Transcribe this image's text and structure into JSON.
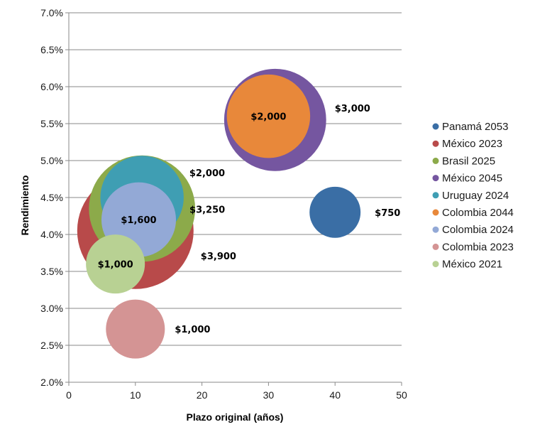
{
  "chart_data": {
    "type": "bubble",
    "xlabel": "Plazo original (años)",
    "ylabel": "Rendimiento",
    "xlim": [
      0,
      50
    ],
    "ylim": [
      2.0,
      7.0
    ],
    "x_ticks": [
      "0",
      "10",
      "20",
      "30",
      "40",
      "50"
    ],
    "y_ticks": [
      "2.0%",
      "2.5%",
      "3.0%",
      "3.5%",
      "4.0%",
      "4.5%",
      "5.0%",
      "5.5%",
      "6.0%",
      "6.5%",
      "7.0%"
    ],
    "grid": true,
    "legend_position": "right",
    "series": [
      {
        "name": "Panamá 2053",
        "x": 40,
        "y": 4.3,
        "size": 750,
        "label": "$750",
        "color": "#3a6ea5"
      },
      {
        "name": "México 2023",
        "x": 10,
        "y": 4.05,
        "size": 3900,
        "label": "$3,900",
        "color": "#b84a4a"
      },
      {
        "name": "Brasil 2025",
        "x": 11,
        "y": 4.35,
        "size": 3250,
        "label": "$3,250",
        "color": "#8caa4a"
      },
      {
        "name": "México 2045",
        "x": 31,
        "y": 5.55,
        "size": 3000,
        "label": "$3,000",
        "color": "#7556a0"
      },
      {
        "name": "Uruguay 2024",
        "x": 11,
        "y": 4.5,
        "size": 2000,
        "label": "$2,000",
        "color": "#3f9eb3"
      },
      {
        "name": "Colombia 2044",
        "x": 30,
        "y": 5.6,
        "size": 2000,
        "label": "$2,000",
        "color": "#e8883a"
      },
      {
        "name": "Colombia 2024",
        "x": 10.5,
        "y": 4.2,
        "size": 1600,
        "label": "$1,600",
        "color": "#93a9d6"
      },
      {
        "name": "Colombia 2023",
        "x": 10,
        "y": 2.72,
        "size": 1000,
        "label": "$1,000",
        "color": "#d49494"
      },
      {
        "name": "México 2021",
        "x": 7,
        "y": 3.6,
        "size": 1000,
        "label": "$1,000",
        "color": "#b8d193"
      }
    ]
  }
}
